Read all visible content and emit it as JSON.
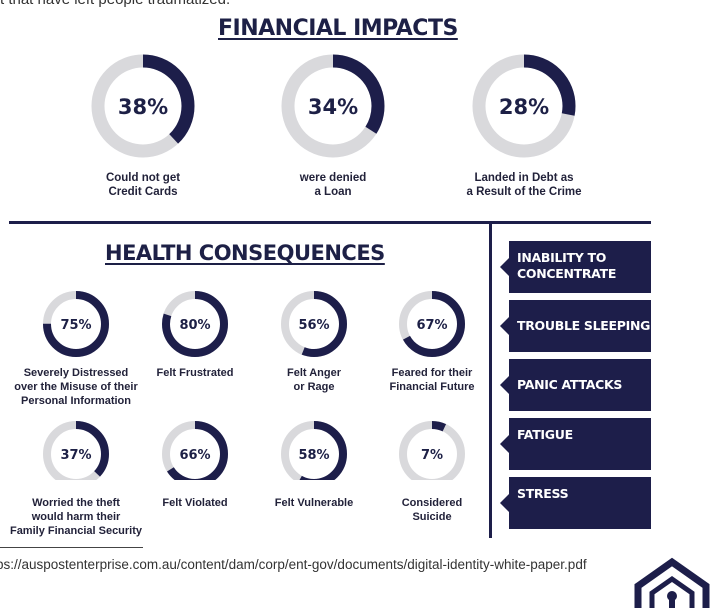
{
  "intro_text": "t that have left people traumatized.",
  "financial": {
    "heading": "FINANCIAL IMPACTS",
    "items": [
      {
        "percent_label": "38%",
        "value": 38,
        "label_line1": "Could not get",
        "label_line2": "Credit Cards"
      },
      {
        "percent_label": "34%",
        "value": 34,
        "label_line1": "were denied",
        "label_line2": "a Loan"
      },
      {
        "percent_label": "28%",
        "value": 28,
        "label_line1": "Landed in Debt as",
        "label_line2": "a Result of the Crime"
      }
    ]
  },
  "health": {
    "heading": "HEALTH CONSEQUENCES",
    "items": [
      {
        "percent_label": "75%",
        "value": 75,
        "lines": [
          "Severely Distressed",
          "over the Misuse of their",
          "Personal Information"
        ]
      },
      {
        "percent_label": "80%",
        "value": 80,
        "lines": [
          "Felt Frustrated"
        ]
      },
      {
        "percent_label": "56%",
        "value": 56,
        "lines": [
          "Felt Anger",
          "or Rage"
        ]
      },
      {
        "percent_label": "67%",
        "value": 67,
        "lines": [
          "Feared for their",
          "Financial Future"
        ]
      },
      {
        "percent_label": "37%",
        "value": 37,
        "lines": [
          "Worried the theft",
          "would harm their",
          "Family Financial Security"
        ]
      },
      {
        "percent_label": "66%",
        "value": 66,
        "lines": [
          "Felt Violated"
        ]
      },
      {
        "percent_label": "58%",
        "value": 58,
        "lines": [
          "Felt Vulnerable"
        ]
      },
      {
        "percent_label": "7%",
        "value": 7,
        "lines": [
          "Considered",
          "Suicide"
        ]
      }
    ]
  },
  "symptoms": [
    {
      "line1": "INABILITY TO",
      "line2": "CONCENTRATE"
    },
    {
      "line1": "TROUBLE SLEEPING",
      "line2": ""
    },
    {
      "line1": "PANIC ATTACKS",
      "line2": ""
    },
    {
      "line1": "FATIGUE",
      "line2": ""
    },
    {
      "line1": "STRESS",
      "line2": ""
    }
  ],
  "source_url": "ps://auspostenterprise.com.au/content/dam/corp/ent-gov/documents/digital-identity-white-paper.pdf",
  "colors": {
    "navy": "#1d1e4a",
    "ring_grey": "#d9d9dc"
  }
}
